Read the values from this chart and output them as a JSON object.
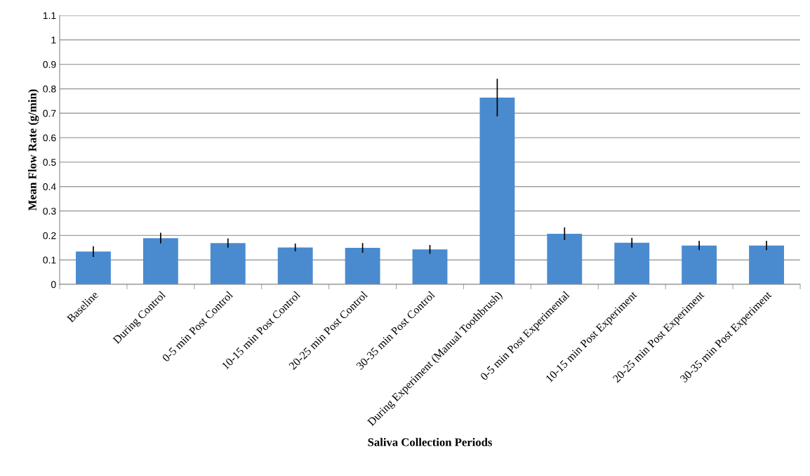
{
  "chart_data": {
    "type": "bar",
    "xlabel": "Saliva Collection Periods",
    "ylabel": "Mean Flow Rate (g/min)",
    "categories": [
      "Baseline",
      "During Control",
      "0-5 min Post Control",
      "10-15 min Post Control",
      "20-25 min Post Control",
      "30-35 min Post Control",
      "During Experiment (Manual Toothbrush)",
      "0-5 min Post Experimental",
      "10-15 min Post Experiment",
      "20-25 min Post Experiment",
      "30-35 min Post Experiment"
    ],
    "values": [
      0.134,
      0.189,
      0.169,
      0.151,
      0.149,
      0.143,
      0.764,
      0.207,
      0.17,
      0.159,
      0.159
    ],
    "errors": [
      0.022,
      0.022,
      0.019,
      0.016,
      0.02,
      0.018,
      0.077,
      0.026,
      0.02,
      0.019,
      0.019
    ],
    "color": "#4a8bd0",
    "ylim": [
      0,
      1.1
    ],
    "yticks": [
      0,
      0.1,
      0.2,
      0.3,
      0.4,
      0.5,
      0.6,
      0.7,
      0.8,
      0.9,
      1,
      1.1
    ],
    "grid": "y",
    "legend": false
  }
}
